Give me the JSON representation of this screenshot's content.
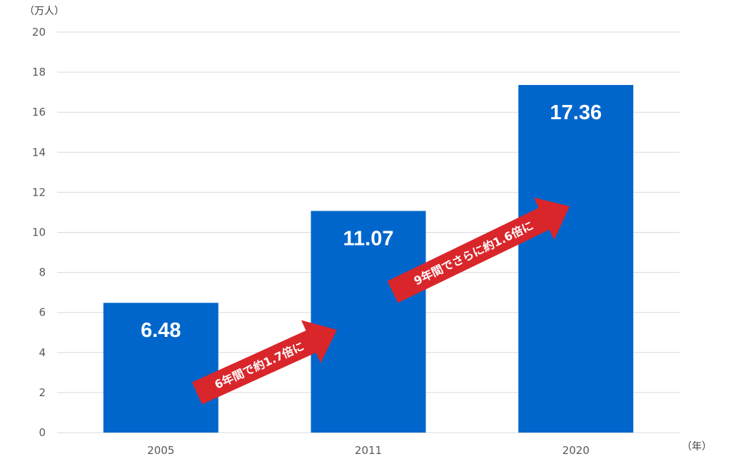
{
  "chart_data": {
    "type": "bar",
    "categories": [
      "2005",
      "2011",
      "2020"
    ],
    "values": [
      6.48,
      11.07,
      17.36
    ],
    "data_labels": [
      "6.48",
      "11.07",
      "17.36"
    ],
    "ylim": [
      0,
      20
    ],
    "yticks": [
      0,
      2,
      4,
      6,
      8,
      10,
      12,
      14,
      16,
      18,
      20
    ],
    "y_unit": "（万人）",
    "x_unit": "（年）",
    "grid": true,
    "bar_color": "#0066CC",
    "annotations": [
      {
        "text": "6年間で約1.7倍に",
        "from": "2005",
        "to": "2011",
        "color": "#D9262B"
      },
      {
        "text": "9年間でさらに約1.6倍に",
        "from": "2011",
        "to": "2020",
        "color": "#D9262B"
      }
    ]
  }
}
